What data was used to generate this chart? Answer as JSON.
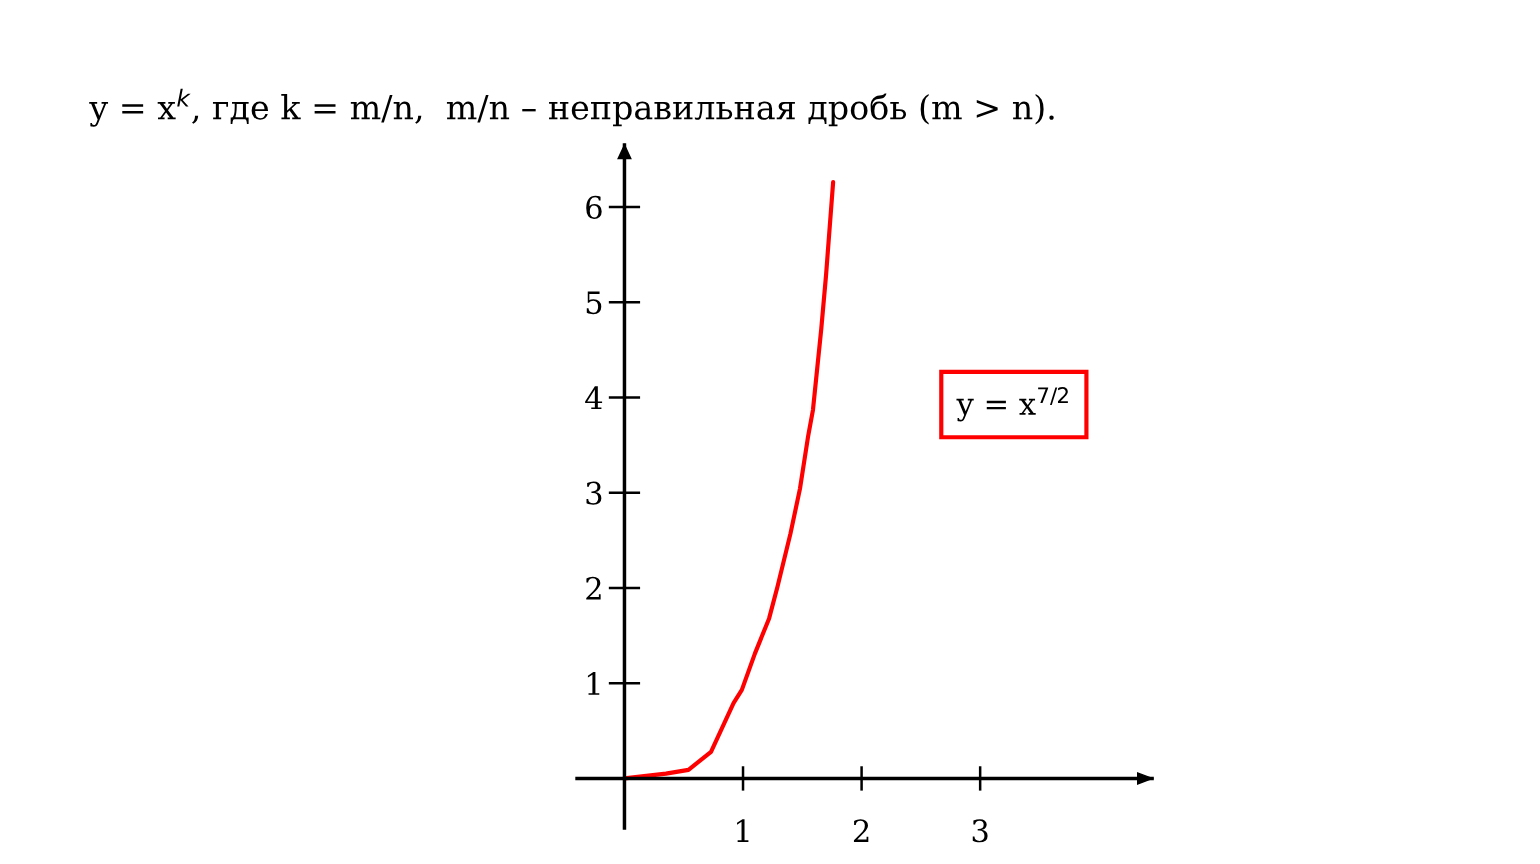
{
  "chart_data": {
    "type": "line",
    "title": "y = x$^{k}$, где k = m/n,  m/n – неправильная дробь (m > n).",
    "annotations": [
      "y = x$^{7/2}$"
    ],
    "series": [
      {
        "color": "#ff0000",
        "x": [
          0,
          0.35,
          0.54,
          0.73,
          0.92,
          0.99,
          1.1,
          1.22,
          1.29,
          1.4,
          1.48,
          1.55,
          1.59,
          1.66,
          1.7,
          1.76
        ],
        "values": [
          0,
          0.05,
          0.09,
          0.28,
          0.79,
          0.93,
          1.31,
          1.68,
          2.01,
          2.57,
          3.04,
          3.6,
          3.87,
          4.72,
          5.28,
          6.26
        ]
      }
    ],
    "xlim": [
      -0.4,
      4.45
    ],
    "ylim": [
      -0.52,
      6.65
    ],
    "xticks": [
      1,
      2,
      3
    ],
    "yticks": [
      1,
      2,
      3,
      4,
      5,
      6
    ],
    "grid": false,
    "marker": "none",
    "line_style": "solid"
  }
}
